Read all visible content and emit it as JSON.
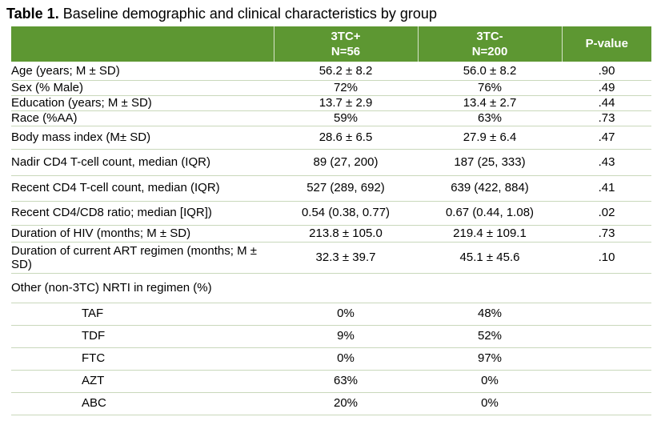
{
  "caption": {
    "label": "Table 1.",
    "text": " Baseline demographic and clinical characteristics by group"
  },
  "header": {
    "col0": "",
    "col1_line1": "3TC+",
    "col1_line2": "N=56",
    "col2_line1": "3TC-",
    "col2_line2": "N=200",
    "col3": "P-value"
  },
  "rows": [
    {
      "label": "Age (years; M ± SD)",
      "a": "56.2 ± 8.2",
      "b": "56.0 ± 8.2",
      "p": ".90"
    },
    {
      "label": "Sex (% Male)",
      "a": "72%",
      "b": "76%",
      "p": ".49"
    },
    {
      "label": "Education (years; M ± SD)",
      "a": "13.7 ± 2.9",
      "b": "13.4 ± 2.7",
      "p": ".44"
    },
    {
      "label": "Race (%AA)",
      "a": "59%",
      "b": "63%",
      "p": ".73"
    },
    {
      "label": "Body mass index (M± SD)",
      "a": "28.6 ± 6.5",
      "b": "27.9 ± 6.4",
      "p": ".47"
    },
    {
      "label": "Nadir CD4 T-cell count, median (IQR)",
      "a": "89 (27, 200)",
      "b": "187 (25, 333)",
      "p": ".43"
    },
    {
      "label": "Recent CD4 T-cell count, median (IQR)",
      "a": "527 (289, 692)",
      "b": "639 (422, 884)",
      "p": ".41"
    },
    {
      "label": "Recent CD4/CD8 ratio; median [IQR])",
      "a": "0.54 (0.38, 0.77)",
      "b": "0.67 (0.44, 1.08)",
      "p": ".02"
    },
    {
      "label": "Duration of HIV (months; M ± SD)",
      "a": "213.8 ± 105.0",
      "b": "219.4 ± 109.1",
      "p": ".73"
    },
    {
      "label": "Duration of current ART regimen (months; M ± SD)",
      "a": "32.3 ± 39.7",
      "b": "45.1 ± 45.6",
      "p": ".10"
    },
    {
      "label": "Other (non-3TC) NRTI in regimen (%)",
      "a": "",
      "b": "",
      "p": ""
    },
    {
      "label": "TAF",
      "a": "0%",
      "b": "48%",
      "p": ""
    },
    {
      "label": "TDF",
      "a": "9%",
      "b": "52%",
      "p": ""
    },
    {
      "label": "FTC",
      "a": "0%",
      "b": "97%",
      "p": ""
    },
    {
      "label": "AZT",
      "a": "63%",
      "b": "0%",
      "p": ""
    },
    {
      "label": "ABC",
      "a": "20%",
      "b": "0%",
      "p": ""
    }
  ]
}
